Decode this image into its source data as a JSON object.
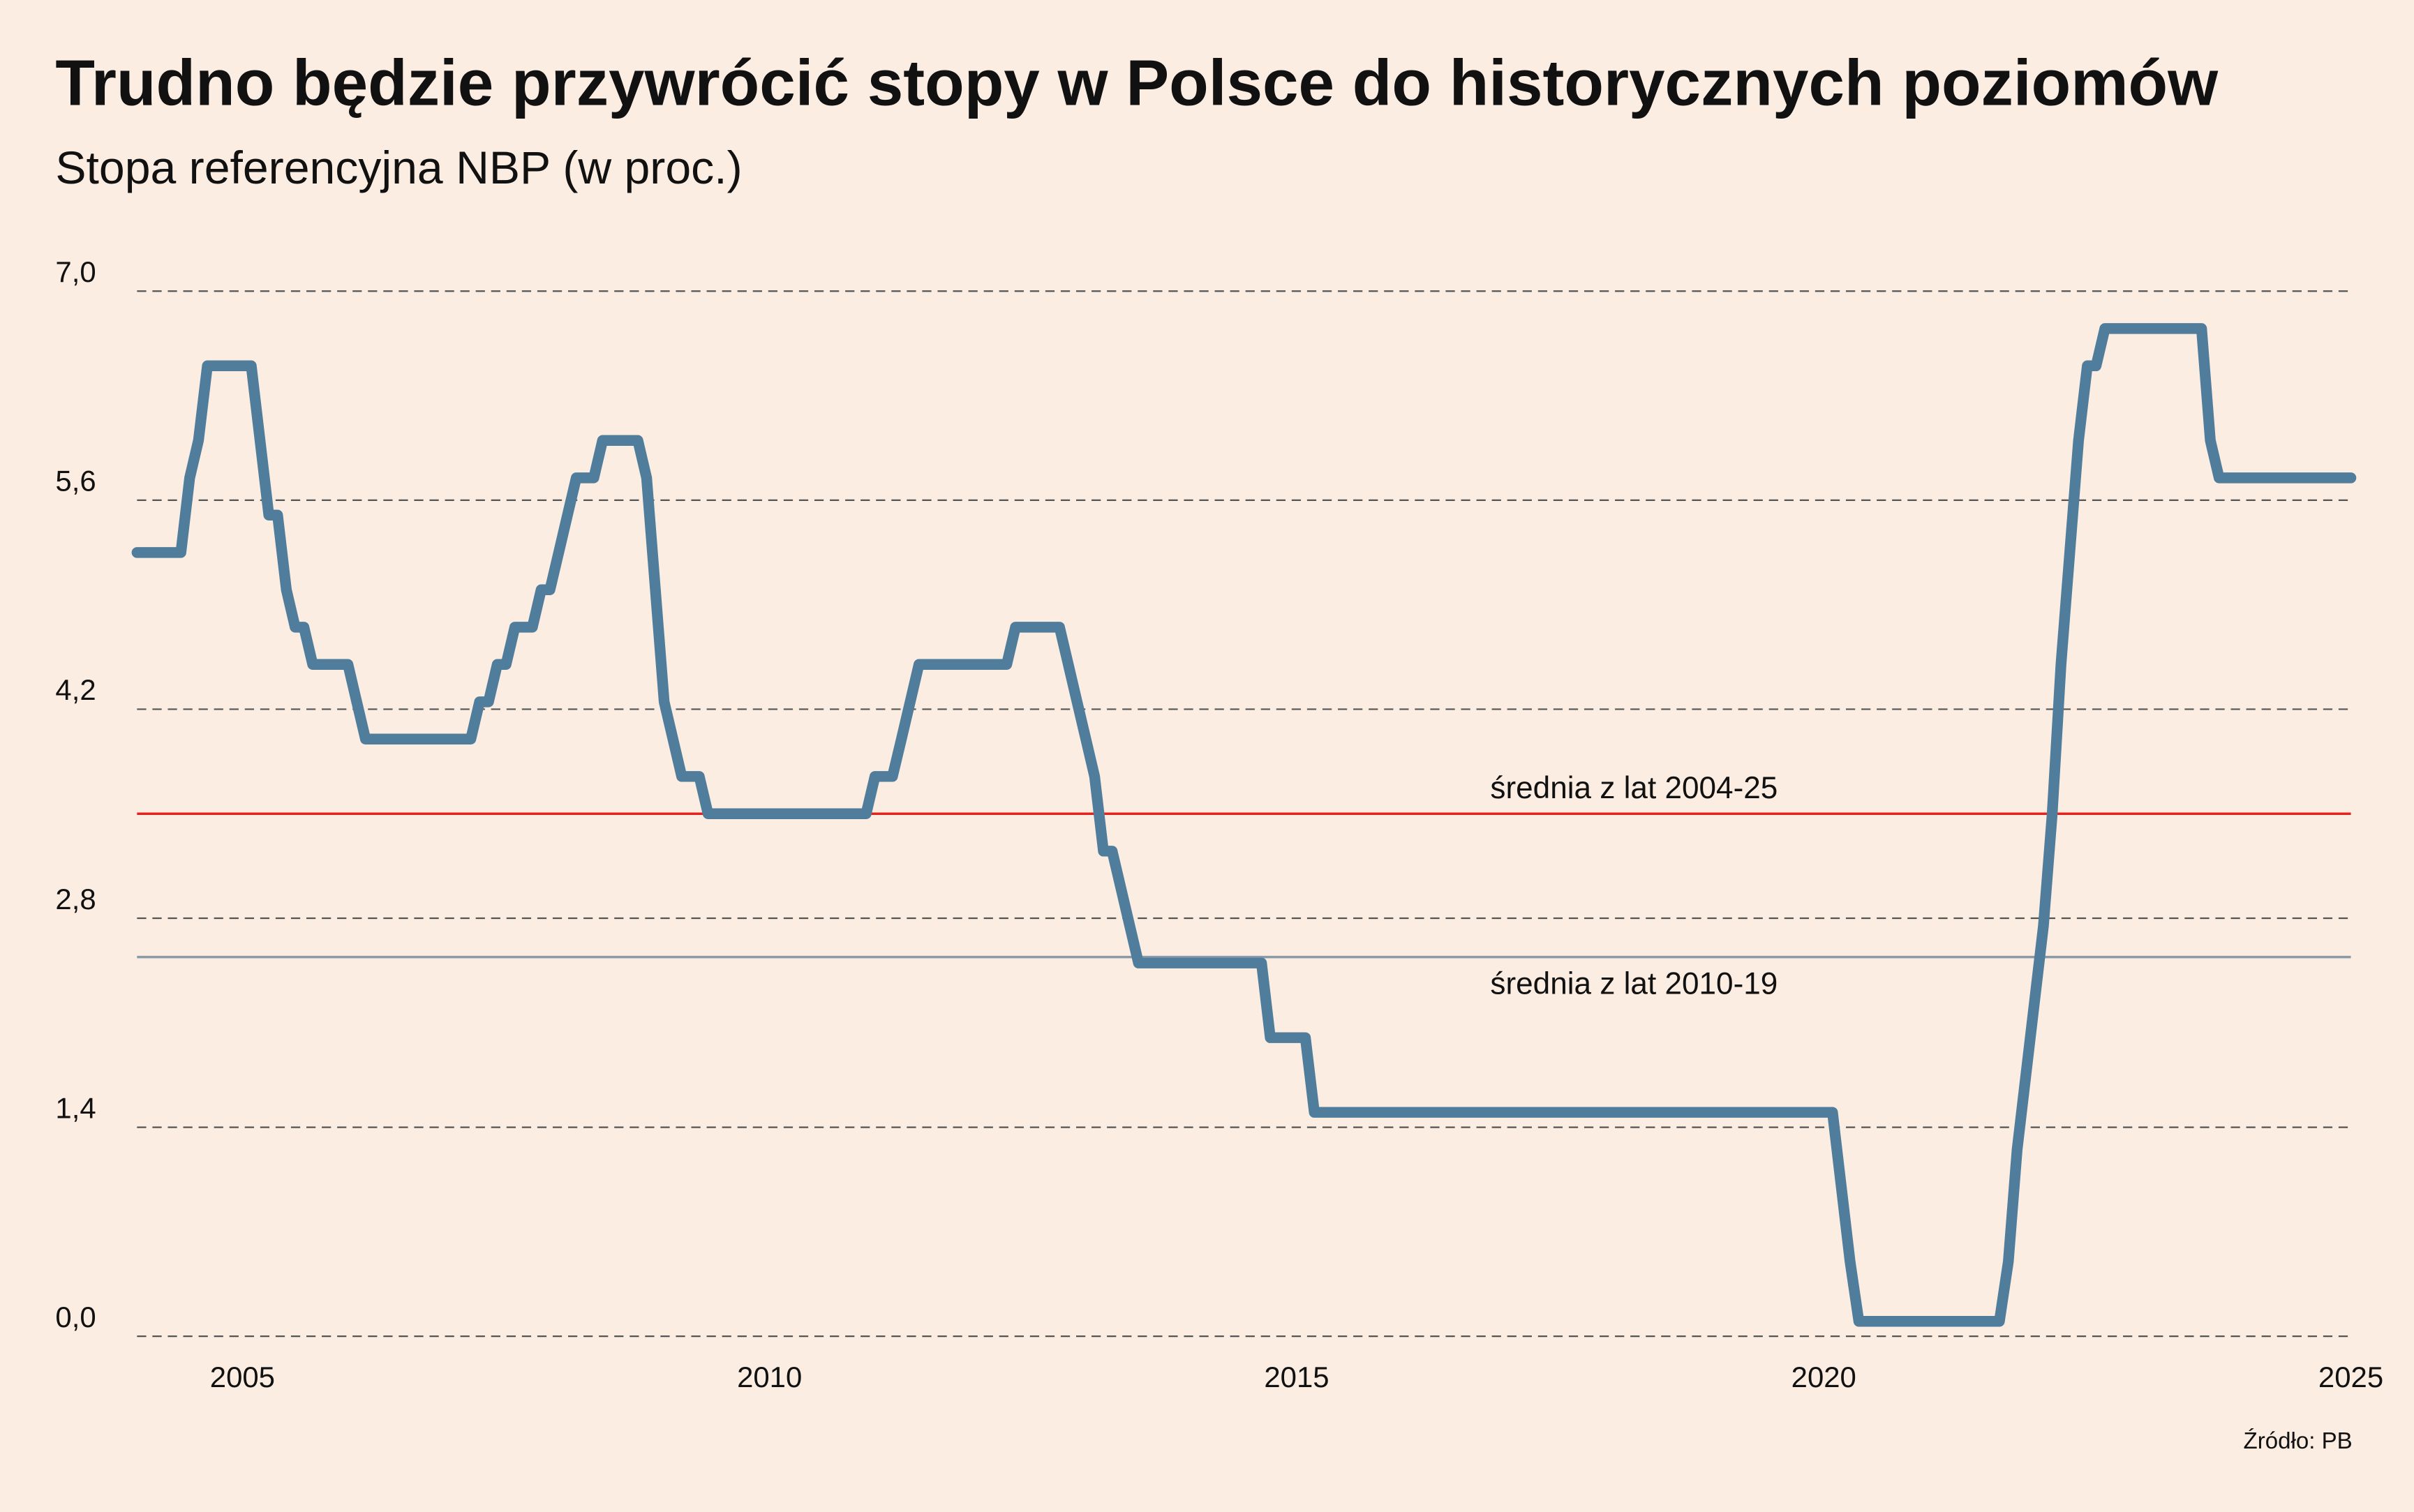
{
  "chart_data": {
    "type": "line",
    "title": "Trudno będzie przywrócić stopy w Polsce do historycznych poziomów",
    "subtitle": "Stopa referencyjna NBP (w proc.)",
    "source": "Źródło: PB",
    "xlim": [
      "2004-01",
      "2025-01"
    ],
    "ylim": [
      0,
      7
    ],
    "x_ticks": [
      {
        "date": "2005-01",
        "label": "2005"
      },
      {
        "date": "2010-01",
        "label": "2010"
      },
      {
        "date": "2015-01",
        "label": "2015"
      },
      {
        "date": "2020-01",
        "label": "2020"
      },
      {
        "date": "2025-01",
        "label": "2025"
      }
    ],
    "y_ticks": [
      {
        "value": 0,
        "label": "0,0"
      },
      {
        "value": 1.4,
        "label": "1,4"
      },
      {
        "value": 2.8,
        "label": "2,8"
      },
      {
        "value": 4.2,
        "label": "4,2"
      },
      {
        "value": 5.6,
        "label": "5,6"
      },
      {
        "value": 7.0,
        "label": "7,0"
      }
    ],
    "grid": "horizontal dashed",
    "line_color": "#4f7d9b",
    "series": [
      {
        "rate_changes": [
          [
            "2004-01",
            5.25
          ],
          [
            "2004-07",
            5.75
          ],
          [
            "2004-08",
            6.0
          ],
          [
            "2004-09",
            6.5
          ],
          [
            "2005-03",
            6.0
          ],
          [
            "2005-04",
            5.5
          ],
          [
            "2005-06",
            5.0
          ],
          [
            "2005-07",
            4.75
          ],
          [
            "2005-09",
            4.5
          ],
          [
            "2006-02",
            4.25
          ],
          [
            "2006-03",
            4.0
          ],
          [
            "2007-04",
            4.25
          ],
          [
            "2007-06",
            4.5
          ],
          [
            "2007-08",
            4.75
          ],
          [
            "2007-11",
            5.0
          ],
          [
            "2008-01",
            5.25
          ],
          [
            "2008-02",
            5.5
          ],
          [
            "2008-03",
            5.75
          ],
          [
            "2008-06",
            6.0
          ],
          [
            "2008-11",
            5.75
          ],
          [
            "2008-12",
            5.0
          ],
          [
            "2009-01",
            4.25
          ],
          [
            "2009-02",
            4.0
          ],
          [
            "2009-03",
            3.75
          ],
          [
            "2009-06",
            3.5
          ],
          [
            "2011-01",
            3.75
          ],
          [
            "2011-04",
            4.0
          ],
          [
            "2011-05",
            4.25
          ],
          [
            "2011-06",
            4.5
          ],
          [
            "2012-05",
            4.75
          ],
          [
            "2012-11",
            4.5
          ],
          [
            "2012-12",
            4.25
          ],
          [
            "2013-01",
            4.0
          ],
          [
            "2013-02",
            3.75
          ],
          [
            "2013-03",
            3.25
          ],
          [
            "2013-05",
            3.0
          ],
          [
            "2013-06",
            2.75
          ],
          [
            "2013-07",
            2.5
          ],
          [
            "2014-10",
            2.0
          ],
          [
            "2015-03",
            1.5
          ],
          [
            "2020-03",
            1.0
          ],
          [
            "2020-04",
            0.5
          ],
          [
            "2020-05",
            0.1
          ],
          [
            "2021-10",
            0.5
          ],
          [
            "2021-11",
            1.25
          ],
          [
            "2021-12",
            1.75
          ],
          [
            "2022-01",
            2.25
          ],
          [
            "2022-02",
            2.75
          ],
          [
            "2022-03",
            3.5
          ],
          [
            "2022-04",
            4.5
          ],
          [
            "2022-05",
            5.25
          ],
          [
            "2022-06",
            6.0
          ],
          [
            "2022-07",
            6.5
          ],
          [
            "2022-09",
            6.75
          ],
          [
            "2023-09",
            6.0
          ],
          [
            "2023-10",
            5.75
          ],
          [
            "2025-01",
            5.75
          ]
        ]
      }
    ],
    "reference_lines": [
      {
        "value": 3.5,
        "label": "średnia z lat 2004-25",
        "color": "#e3231e",
        "label_position": "above"
      },
      {
        "value": 2.54,
        "label": "średnia z lat 2010-19",
        "color": "#8a9aa6",
        "label_position": "below"
      }
    ]
  }
}
